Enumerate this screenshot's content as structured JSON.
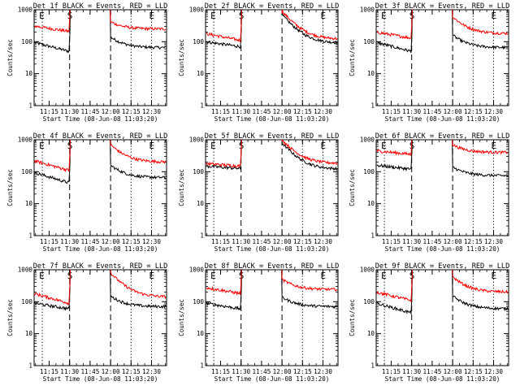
{
  "chart_data": {
    "type": "line",
    "x_tick_labels": [
      "11:15",
      "11:30",
      "11:45",
      "12:00",
      "12:15",
      "12:30"
    ],
    "x_ticks_minutes": [
      0,
      15,
      30,
      45,
      60,
      75
    ],
    "xlim_minutes": [
      -11,
      86
    ],
    "x_origin_clock": "11:15",
    "y_scale": "log",
    "ylim": [
      1,
      1000
    ],
    "y_tick_labels": [
      "1",
      "10",
      "100",
      "1000"
    ],
    "xlabel": "Start Time (08-Jun-08 11:03:20)",
    "ylabel": "Counts/sec",
    "colors": {
      "events": "#000000",
      "lld": "#ff0000"
    },
    "markers": [
      {
        "label": "E",
        "minute": -5,
        "style": "dotted"
      },
      {
        "label": "S",
        "minute": 15,
        "style": "dashed"
      },
      {
        "label": "",
        "minute": 45,
        "style": "dashed"
      },
      {
        "label": "",
        "minute": 60,
        "style": "dotted"
      },
      {
        "label": "E",
        "minute": 75,
        "style": "dotted"
      }
    ],
    "panels": [
      {
        "title": "Det 1f BLACK = Events, RED = LLD",
        "series": [
          {
            "name": "Events",
            "color": "#000000",
            "pre_start": 95,
            "pre_end": 50,
            "post_start": 140,
            "post_end": 65
          },
          {
            "name": "LLD",
            "color": "#ff0000",
            "pre_start": 310,
            "pre_end": 210,
            "post_start": 420,
            "post_end": 250
          }
        ]
      },
      {
        "title": "Det 2f BLACK = Events, RED = LLD",
        "series": [
          {
            "name": "Events",
            "color": "#000000",
            "pre_start": 100,
            "pre_end": 70,
            "post_start": 700,
            "post_end": 90
          },
          {
            "name": "LLD",
            "color": "#ff0000",
            "pre_start": 180,
            "pre_end": 110,
            "post_start": 900,
            "post_end": 120
          }
        ]
      },
      {
        "title": "Det 3f BLACK = Events, RED = LLD",
        "series": [
          {
            "name": "Events",
            "color": "#000000",
            "pre_start": 95,
            "pre_end": 50,
            "post_start": 160,
            "post_end": 65
          },
          {
            "name": "LLD",
            "color": "#ff0000",
            "pre_start": 200,
            "pre_end": 130,
            "post_start": 600,
            "post_end": 180
          }
        ]
      },
      {
        "title": "Det 4f BLACK = Events, RED = LLD",
        "series": [
          {
            "name": "Events",
            "color": "#000000",
            "pre_start": 95,
            "pre_end": 45,
            "post_start": 160,
            "post_end": 65
          },
          {
            "name": "LLD",
            "color": "#ff0000",
            "pre_start": 220,
            "pre_end": 110,
            "post_start": 700,
            "post_end": 200
          }
        ]
      },
      {
        "title": "Det 5f BLACK = Events, RED = LLD",
        "series": [
          {
            "name": "Events",
            "color": "#000000",
            "pre_start": 150,
            "pre_end": 125,
            "post_start": 800,
            "post_end": 120
          },
          {
            "name": "LLD",
            "color": "#ff0000",
            "pre_start": 180,
            "pre_end": 150,
            "post_start": 1000,
            "post_end": 180
          }
        ]
      },
      {
        "title": "Det 6f BLACK = Events, RED = LLD",
        "series": [
          {
            "name": "Events",
            "color": "#000000",
            "pre_start": 160,
            "pre_end": 120,
            "post_start": 140,
            "post_end": 75
          },
          {
            "name": "LLD",
            "color": "#ff0000",
            "pre_start": 450,
            "pre_end": 350,
            "post_start": 700,
            "post_end": 400
          }
        ]
      },
      {
        "title": "Det 7f BLACK = Events, RED = LLD",
        "series": [
          {
            "name": "Events",
            "color": "#000000",
            "pre_start": 90,
            "pre_end": 60,
            "post_start": 150,
            "post_end": 70
          },
          {
            "name": "LLD",
            "color": "#ff0000",
            "pre_start": 180,
            "pre_end": 90,
            "post_start": 800,
            "post_end": 140
          }
        ]
      },
      {
        "title": "Det 8f BLACK = Events, RED = LLD",
        "series": [
          {
            "name": "Events",
            "color": "#000000",
            "pre_start": 90,
            "pre_end": 60,
            "post_start": 140,
            "post_end": 70
          },
          {
            "name": "LLD",
            "color": "#ff0000",
            "pre_start": 280,
            "pre_end": 180,
            "post_start": 500,
            "post_end": 240
          }
        ]
      },
      {
        "title": "Det 9f BLACK = Events, RED = LLD",
        "series": [
          {
            "name": "Events",
            "color": "#000000",
            "pre_start": 90,
            "pre_end": 45,
            "post_start": 150,
            "post_end": 60
          },
          {
            "name": "LLD",
            "color": "#ff0000",
            "pre_start": 200,
            "pre_end": 110,
            "post_start": 600,
            "post_end": 200
          }
        ]
      }
    ]
  }
}
